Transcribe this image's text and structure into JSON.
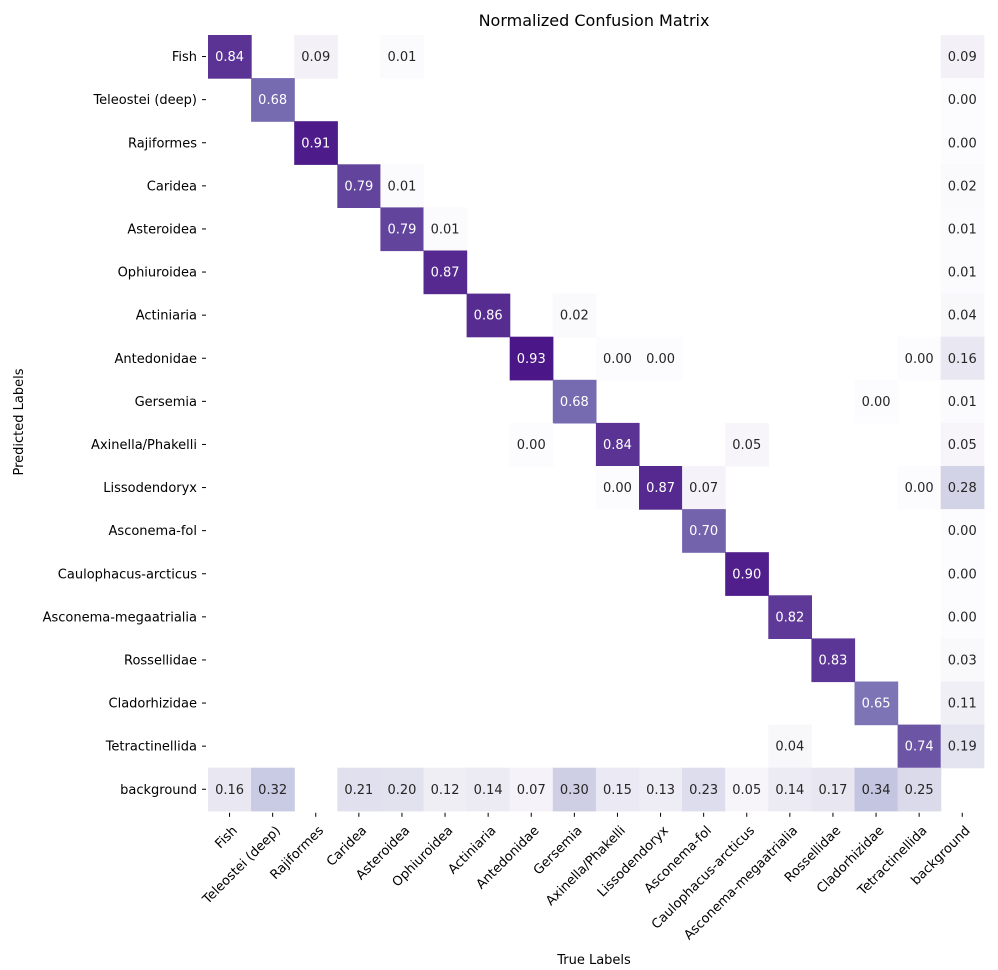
{
  "chart_data": {
    "type": "heatmap",
    "title": "Normalized Confusion Matrix",
    "xlabel": "True Labels",
    "ylabel": "Predicted Labels",
    "colormap": "Purples",
    "value_range": [
      0,
      1
    ],
    "x_labels": [
      "Fish",
      "Teleostei (deep)",
      "Rajiformes",
      "Caridea",
      "Asteroidea",
      "Ophiuroidea",
      "Actiniaria",
      "Antedonidae",
      "Gersemia",
      "Axinella/Phakelli",
      "Lissodendoryx",
      "Asconema-fol",
      "Caulophacus-arcticus",
      "Asconema-megaatrialia",
      "Rossellidae",
      "Cladorhizidae",
      "Tetractinellida",
      "background"
    ],
    "y_labels": [
      "Fish",
      "Teleostei (deep)",
      "Rajiformes",
      "Caridea",
      "Asteroidea",
      "Ophiuroidea",
      "Actiniaria",
      "Antedonidae",
      "Gersemia",
      "Axinella/Phakelli",
      "Lissodendoryx",
      "Asconema-fol",
      "Caulophacus-arcticus",
      "Asconema-megaatrialia",
      "Rossellidae",
      "Cladorhizidae",
      "Tetractinellida",
      "background"
    ],
    "cells": [
      {
        "row": 0,
        "col": 0,
        "value": 0.84,
        "label": "0.84"
      },
      {
        "row": 0,
        "col": 2,
        "value": 0.09,
        "label": "0.09"
      },
      {
        "row": 0,
        "col": 4,
        "value": 0.01,
        "label": "0.01"
      },
      {
        "row": 0,
        "col": 17,
        "value": 0.09,
        "label": "0.09"
      },
      {
        "row": 1,
        "col": 1,
        "value": 0.68,
        "label": "0.68"
      },
      {
        "row": 1,
        "col": 17,
        "value": 0.0,
        "label": "0.00"
      },
      {
        "row": 2,
        "col": 2,
        "value": 0.91,
        "label": "0.91"
      },
      {
        "row": 2,
        "col": 17,
        "value": 0.0,
        "label": "0.00"
      },
      {
        "row": 3,
        "col": 3,
        "value": 0.79,
        "label": "0.79"
      },
      {
        "row": 3,
        "col": 4,
        "value": 0.01,
        "label": "0.01"
      },
      {
        "row": 3,
        "col": 17,
        "value": 0.02,
        "label": "0.02"
      },
      {
        "row": 4,
        "col": 4,
        "value": 0.79,
        "label": "0.79"
      },
      {
        "row": 4,
        "col": 5,
        "value": 0.01,
        "label": "0.01"
      },
      {
        "row": 4,
        "col": 17,
        "value": 0.01,
        "label": "0.01"
      },
      {
        "row": 5,
        "col": 5,
        "value": 0.87,
        "label": "0.87"
      },
      {
        "row": 5,
        "col": 17,
        "value": 0.01,
        "label": "0.01"
      },
      {
        "row": 6,
        "col": 6,
        "value": 0.86,
        "label": "0.86"
      },
      {
        "row": 6,
        "col": 8,
        "value": 0.02,
        "label": "0.02"
      },
      {
        "row": 6,
        "col": 17,
        "value": 0.04,
        "label": "0.04"
      },
      {
        "row": 7,
        "col": 7,
        "value": 0.93,
        "label": "0.93"
      },
      {
        "row": 7,
        "col": 9,
        "value": 0.0,
        "label": "0.00"
      },
      {
        "row": 7,
        "col": 10,
        "value": 0.0,
        "label": "0.00"
      },
      {
        "row": 7,
        "col": 16,
        "value": 0.0,
        "label": "0.00"
      },
      {
        "row": 7,
        "col": 17,
        "value": 0.16,
        "label": "0.16"
      },
      {
        "row": 8,
        "col": 8,
        "value": 0.68,
        "label": "0.68"
      },
      {
        "row": 8,
        "col": 15,
        "value": 0.0,
        "label": "0.00"
      },
      {
        "row": 8,
        "col": 17,
        "value": 0.01,
        "label": "0.01"
      },
      {
        "row": 9,
        "col": 7,
        "value": 0.0,
        "label": "0.00"
      },
      {
        "row": 9,
        "col": 9,
        "value": 0.84,
        "label": "0.84"
      },
      {
        "row": 9,
        "col": 12,
        "value": 0.05,
        "label": "0.05"
      },
      {
        "row": 9,
        "col": 17,
        "value": 0.05,
        "label": "0.05"
      },
      {
        "row": 10,
        "col": 9,
        "value": 0.0,
        "label": "0.00"
      },
      {
        "row": 10,
        "col": 10,
        "value": 0.87,
        "label": "0.87"
      },
      {
        "row": 10,
        "col": 11,
        "value": 0.07,
        "label": "0.07"
      },
      {
        "row": 10,
        "col": 16,
        "value": 0.0,
        "label": "0.00"
      },
      {
        "row": 10,
        "col": 17,
        "value": 0.28,
        "label": "0.28"
      },
      {
        "row": 11,
        "col": 11,
        "value": 0.7,
        "label": "0.70"
      },
      {
        "row": 11,
        "col": 17,
        "value": 0.0,
        "label": "0.00"
      },
      {
        "row": 12,
        "col": 12,
        "value": 0.9,
        "label": "0.90"
      },
      {
        "row": 12,
        "col": 17,
        "value": 0.0,
        "label": "0.00"
      },
      {
        "row": 13,
        "col": 13,
        "value": 0.82,
        "label": "0.82"
      },
      {
        "row": 13,
        "col": 17,
        "value": 0.0,
        "label": "0.00"
      },
      {
        "row": 14,
        "col": 14,
        "value": 0.83,
        "label": "0.83"
      },
      {
        "row": 14,
        "col": 17,
        "value": 0.03,
        "label": "0.03"
      },
      {
        "row": 15,
        "col": 15,
        "value": 0.65,
        "label": "0.65"
      },
      {
        "row": 15,
        "col": 17,
        "value": 0.11,
        "label": "0.11"
      },
      {
        "row": 16,
        "col": 13,
        "value": 0.04,
        "label": "0.04"
      },
      {
        "row": 16,
        "col": 16,
        "value": 0.74,
        "label": "0.74"
      },
      {
        "row": 16,
        "col": 17,
        "value": 0.19,
        "label": "0.19"
      },
      {
        "row": 17,
        "col": 0,
        "value": 0.16,
        "label": "0.16"
      },
      {
        "row": 17,
        "col": 1,
        "value": 0.32,
        "label": "0.32"
      },
      {
        "row": 17,
        "col": 3,
        "value": 0.21,
        "label": "0.21"
      },
      {
        "row": 17,
        "col": 4,
        "value": 0.2,
        "label": "0.20"
      },
      {
        "row": 17,
        "col": 5,
        "value": 0.12,
        "label": "0.12"
      },
      {
        "row": 17,
        "col": 6,
        "value": 0.14,
        "label": "0.14"
      },
      {
        "row": 17,
        "col": 7,
        "value": 0.07,
        "label": "0.07"
      },
      {
        "row": 17,
        "col": 8,
        "value": 0.3,
        "label": "0.30"
      },
      {
        "row": 17,
        "col": 9,
        "value": 0.15,
        "label": "0.15"
      },
      {
        "row": 17,
        "col": 10,
        "value": 0.13,
        "label": "0.13"
      },
      {
        "row": 17,
        "col": 11,
        "value": 0.23,
        "label": "0.23"
      },
      {
        "row": 17,
        "col": 12,
        "value": 0.05,
        "label": "0.05"
      },
      {
        "row": 17,
        "col": 13,
        "value": 0.14,
        "label": "0.14"
      },
      {
        "row": 17,
        "col": 14,
        "value": 0.17,
        "label": "0.17"
      },
      {
        "row": 17,
        "col": 15,
        "value": 0.34,
        "label": "0.34"
      },
      {
        "row": 17,
        "col": 16,
        "value": 0.25,
        "label": "0.25"
      }
    ]
  }
}
